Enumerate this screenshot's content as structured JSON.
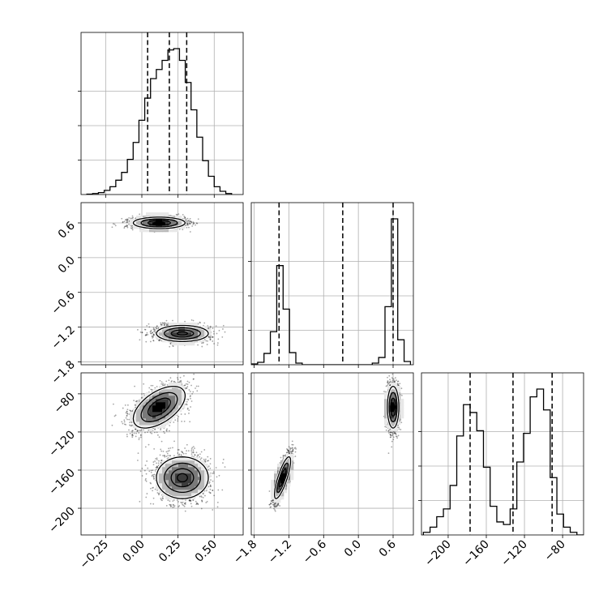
{
  "chart_data": {
    "type": "corner",
    "parameters": [
      {
        "name": "",
        "range": [
          -0.42,
          0.7
        ],
        "ticks": [
          "-0.25",
          "0.00",
          "0.25",
          "0.50"
        ],
        "tick_values": [
          -0.25,
          0.0,
          0.25,
          0.5
        ],
        "quantiles": [
          0.04,
          0.19,
          0.31
        ],
        "hist_edges": [
          -0.38,
          -0.34,
          -0.3,
          -0.26,
          -0.22,
          -0.18,
          -0.14,
          -0.1,
          -0.06,
          -0.02,
          0.02,
          0.06,
          0.1,
          0.14,
          0.18,
          0.22,
          0.26,
          0.3,
          0.34,
          0.38,
          0.42,
          0.46,
          0.5,
          0.54,
          0.58,
          0.62
        ],
        "hist_counts": [
          0.3,
          0.8,
          1.5,
          3.2,
          6,
          11,
          17,
          27,
          40,
          57,
          74,
          89,
          96,
          103,
          111,
          112,
          103,
          86,
          65,
          44,
          26,
          14,
          6,
          2.5,
          0.8
        ]
      },
      {
        "name": "",
        "range": [
          -1.85,
          0.95
        ],
        "ticks": [
          "-1.8",
          "-1.2",
          "-0.6",
          "0.0",
          "0.6"
        ],
        "tick_values": [
          -1.8,
          -1.2,
          -0.6,
          0.0,
          0.6
        ],
        "quantiles": [
          -1.37,
          -0.27,
          0.6
        ],
        "hist_edges": [
          -1.85,
          -1.74,
          -1.63,
          -1.52,
          -1.41,
          -1.3,
          -1.19,
          -1.08,
          -0.97,
          -0.86,
          -0.75,
          -0.64,
          -0.53,
          -0.42,
          -0.31,
          -0.2,
          -0.09,
          0.02,
          0.13,
          0.24,
          0.35,
          0.46,
          0.57,
          0.68,
          0.79,
          0.9
        ],
        "hist_counts": [
          1,
          3,
          14,
          41,
          123,
          69,
          15,
          2,
          0,
          0,
          0,
          0,
          0,
          0,
          0,
          0,
          0,
          0,
          0,
          2,
          9,
          72,
          181,
          31,
          4
        ]
      },
      {
        "name": "",
        "range": [
          -228,
          -58
        ],
        "ticks": [
          "-200",
          "-160",
          "-120",
          "-80"
        ],
        "tick_values": [
          -200,
          -160,
          -120,
          -80
        ],
        "quantiles": [
          -177,
          -132,
          -91
        ],
        "hist_edges": [
          -226,
          -219,
          -212,
          -205,
          -198,
          -191,
          -184,
          -177,
          -170,
          -163,
          -156,
          -149,
          -142,
          -135,
          -128,
          -121,
          -114,
          -107,
          -100,
          -93,
          -86,
          -79,
          -72,
          -65,
          -58
        ],
        "hist_counts": [
          1,
          3,
          7,
          10,
          19,
          38,
          50,
          47,
          40,
          26,
          11,
          5,
          4,
          10,
          28,
          39,
          53,
          56,
          48,
          22,
          8,
          3,
          1,
          0
        ]
      }
    ],
    "modes": [
      {
        "p0": 0.12,
        "p1": 0.6,
        "p2": -94,
        "s0": 0.09,
        "s1": 0.05,
        "s2": 11,
        "r02": 0.55,
        "r12": 0.0,
        "weight": 0.5
      },
      {
        "p0": 0.28,
        "p1": -1.31,
        "p2": -168,
        "s0": 0.09,
        "s1": 0.07,
        "s2": 11,
        "r02": 0.0,
        "r12": 0.8,
        "weight": 0.5
      }
    ],
    "levels": [
      0.39,
      0.86,
      1.39,
      1.99
    ]
  }
}
